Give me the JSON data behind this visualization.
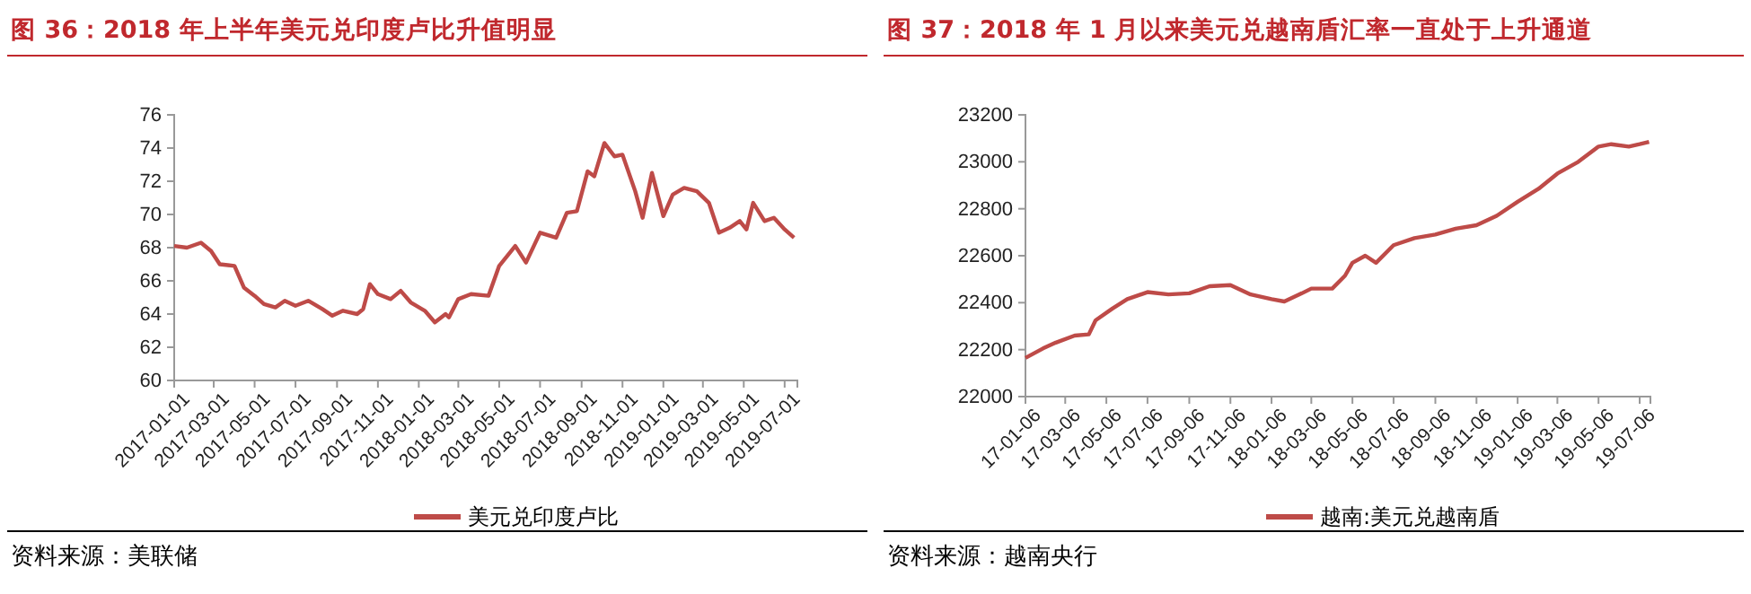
{
  "chart_data": [
    {
      "type": "line",
      "title": "图 36：2018 年上半年美元兑印度卢比升值明显",
      "annotations": [
        "资料来源：美联储"
      ],
      "legend": "bottom",
      "grid": false,
      "line_style": "solid",
      "marker": "none",
      "xlim": [
        "2017-01-01",
        "2019-07-20"
      ],
      "xticks": [
        "2017-01-01",
        "2017-03-01",
        "2017-05-01",
        "2017-07-01",
        "2017-09-01",
        "2017-11-01",
        "2018-01-01",
        "2018-03-01",
        "2018-05-01",
        "2018-07-01",
        "2018-09-01",
        "2018-11-01",
        "2019-01-01",
        "2019-03-01",
        "2019-05-01",
        "2019-07-01"
      ],
      "ylim": [
        60,
        76
      ],
      "yticks": [
        60,
        62,
        64,
        66,
        68,
        70,
        72,
        74,
        76
      ],
      "series": [
        {
          "name": "美元兑印度卢比",
          "color": "#be4b48",
          "x": [
            "2017-01-01",
            "2017-01-20",
            "2017-02-10",
            "2017-02-25",
            "2017-03-10",
            "2017-04-01",
            "2017-04-15",
            "2017-05-01",
            "2017-05-15",
            "2017-06-01",
            "2017-06-15",
            "2017-07-01",
            "2017-07-20",
            "2017-08-10",
            "2017-08-25",
            "2017-09-10",
            "2017-10-01",
            "2017-10-10",
            "2017-10-20",
            "2017-11-01",
            "2017-11-20",
            "2017-12-05",
            "2017-12-20",
            "2018-01-10",
            "2018-01-25",
            "2018-02-10",
            "2018-02-15",
            "2018-03-01",
            "2018-03-20",
            "2018-04-15",
            "2018-05-01",
            "2018-05-25",
            "2018-06-10",
            "2018-07-01",
            "2018-07-25",
            "2018-08-10",
            "2018-08-25",
            "2018-09-10",
            "2018-09-20",
            "2018-10-05",
            "2018-10-20",
            "2018-11-01",
            "2018-11-20",
            "2018-12-01",
            "2018-12-15",
            "2019-01-01",
            "2019-01-15",
            "2019-02-01",
            "2019-02-20",
            "2019-03-10",
            "2019-03-25",
            "2019-04-10",
            "2019-04-25",
            "2019-05-05",
            "2019-05-15",
            "2019-06-01",
            "2019-06-15",
            "2019-07-01",
            "2019-07-15"
          ],
          "values": [
            68.1,
            68.0,
            68.3,
            67.8,
            67.0,
            66.9,
            65.6,
            65.1,
            64.6,
            64.4,
            64.8,
            64.5,
            64.8,
            64.3,
            63.9,
            64.2,
            64.0,
            64.3,
            65.8,
            65.2,
            64.9,
            65.4,
            64.7,
            64.2,
            63.5,
            64.0,
            63.8,
            64.9,
            65.2,
            65.1,
            66.9,
            68.1,
            67.1,
            68.9,
            68.6,
            70.1,
            70.2,
            72.6,
            72.3,
            74.3,
            73.5,
            73.6,
            71.4,
            69.8,
            72.5,
            69.9,
            71.2,
            71.6,
            71.4,
            70.7,
            68.9,
            69.2,
            69.6,
            69.1,
            70.7,
            69.6,
            69.8,
            69.1,
            68.6
          ]
        }
      ]
    },
    {
      "type": "line",
      "title": "图 37：2018 年 1 月以来美元兑越南盾汇率一直处于上升通道",
      "annotations": [
        "资料来源：越南央行"
      ],
      "legend": "bottom",
      "grid": false,
      "line_style": "solid",
      "marker": "none",
      "xlim": [
        "2017-01-06",
        "2019-07-22"
      ],
      "xticks": [
        {
          "value": "2017-01-06",
          "label": "17-01-06"
        },
        {
          "value": "2017-03-06",
          "label": "17-03-06"
        },
        {
          "value": "2017-05-06",
          "label": "17-05-06"
        },
        {
          "value": "2017-07-06",
          "label": "17-07-06"
        },
        {
          "value": "2017-09-06",
          "label": "17-09-06"
        },
        {
          "value": "2017-11-06",
          "label": "17-11-06"
        },
        {
          "value": "2018-01-06",
          "label": "18-01-06"
        },
        {
          "value": "2018-03-06",
          "label": "18-03-06"
        },
        {
          "value": "2018-05-06",
          "label": "18-05-06"
        },
        {
          "value": "2018-07-06",
          "label": "18-07-06"
        },
        {
          "value": "2018-09-06",
          "label": "18-09-06"
        },
        {
          "value": "2018-11-06",
          "label": "18-11-06"
        },
        {
          "value": "2019-01-06",
          "label": "19-01-06"
        },
        {
          "value": "2019-03-06",
          "label": "19-03-06"
        },
        {
          "value": "2019-05-06",
          "label": "19-05-06"
        },
        {
          "value": "2019-07-06",
          "label": "19-07-06"
        }
      ],
      "ylim": [
        22000,
        23200
      ],
      "yticks": [
        22000,
        22200,
        22400,
        22600,
        22800,
        23000,
        23200
      ],
      "series": [
        {
          "name": "越南:美元兑越南盾",
          "color": "#be4b48",
          "x": [
            "2017-01-06",
            "2017-02-01",
            "2017-02-20",
            "2017-03-20",
            "2017-04-10",
            "2017-04-20",
            "2017-05-15",
            "2017-06-06",
            "2017-07-06",
            "2017-08-06",
            "2017-09-06",
            "2017-10-06",
            "2017-11-06",
            "2017-12-06",
            "2018-01-06",
            "2018-01-25",
            "2018-02-20",
            "2018-03-06",
            "2018-04-06",
            "2018-04-25",
            "2018-05-06",
            "2018-05-25",
            "2018-06-10",
            "2018-07-06",
            "2018-08-06",
            "2018-09-06",
            "2018-10-06",
            "2018-11-06",
            "2018-12-06",
            "2019-01-06",
            "2019-02-06",
            "2019-03-06",
            "2019-04-06",
            "2019-05-06",
            "2019-05-25",
            "2019-06-20",
            "2019-07-06",
            "2019-07-20"
          ],
          "values": [
            22165,
            22205,
            22230,
            22260,
            22265,
            22325,
            22375,
            22415,
            22445,
            22435,
            22440,
            22470,
            22475,
            22435,
            22415,
            22405,
            22440,
            22460,
            22460,
            22515,
            22570,
            22600,
            22570,
            22645,
            22675,
            22690,
            22715,
            22730,
            22770,
            22830,
            22885,
            22950,
            23000,
            23065,
            23075,
            23065,
            23075,
            23085
          ]
        }
      ]
    }
  ]
}
